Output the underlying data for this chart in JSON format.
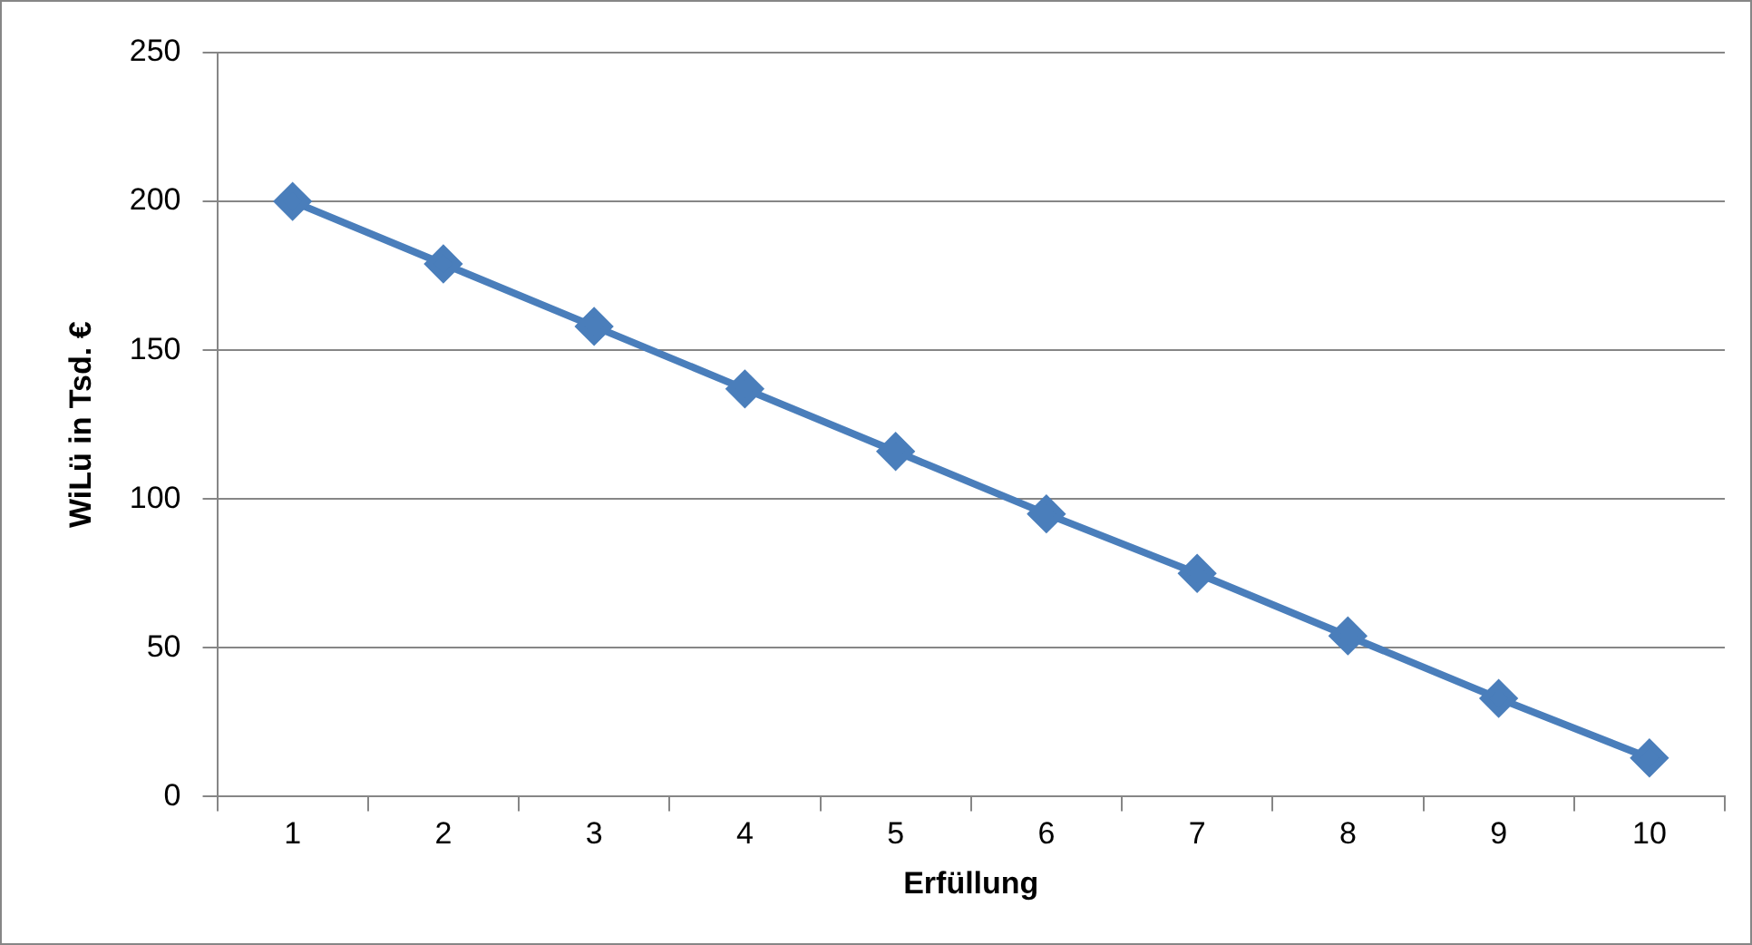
{
  "chart_data": {
    "type": "line",
    "xlabel": "Erfüllung",
    "ylabel": "WiLü in Tsd. €",
    "categories": [
      "1",
      "2",
      "3",
      "4",
      "5",
      "6",
      "7",
      "8",
      "9",
      "10"
    ],
    "series": [
      {
        "color": "#4a7ebb",
        "values": [
          200,
          179,
          158,
          137,
          116,
          95,
          75,
          54,
          33,
          13
        ]
      }
    ],
    "ylim": [
      0,
      250
    ],
    "yticks": [
      0,
      50,
      100,
      150,
      200,
      250
    ],
    "grid": "y",
    "marker": "diamond",
    "line_style": "solid",
    "legend": false
  }
}
